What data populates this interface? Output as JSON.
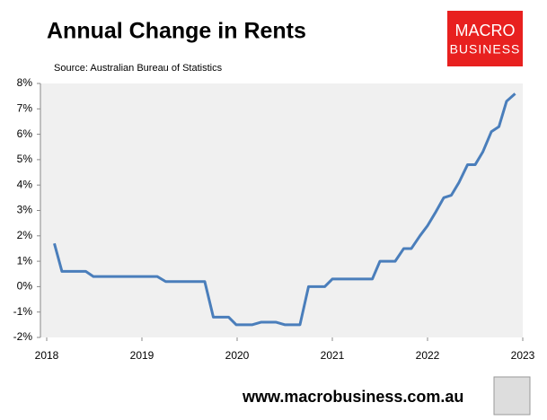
{
  "chart_data": {
    "type": "line",
    "title": "Annual Change in Rents",
    "subtitle": "Source: Australian Bureau of Statistics",
    "logo": {
      "line1": "MACRO",
      "line2": "BUSINESS"
    },
    "footer": "www.macrobusiness.com.au",
    "xlim": [
      2018,
      2023
    ],
    "xticks": [
      2018,
      2019,
      2020,
      2021,
      2022,
      2023
    ],
    "ylim": [
      -2,
      8
    ],
    "yticks": [
      {
        "value": -2,
        "label": "-2%"
      },
      {
        "value": -1,
        "label": "-1%"
      },
      {
        "value": 0,
        "label": "0%"
      },
      {
        "value": 1,
        "label": "1%"
      },
      {
        "value": 2,
        "label": "2%"
      },
      {
        "value": 3,
        "label": "3%"
      },
      {
        "value": 4,
        "label": "4%"
      },
      {
        "value": 5,
        "label": "5%"
      },
      {
        "value": 6,
        "label": "6%"
      },
      {
        "value": 7,
        "label": "7%"
      },
      {
        "value": 8,
        "label": "8%"
      }
    ],
    "grid": false,
    "series": [
      {
        "color": "#4a7ebb",
        "x": [
          2018.08,
          2018.16,
          2018.41,
          2018.49,
          2019.16,
          2019.25,
          2019.66,
          2019.75,
          2019.91,
          2019.99,
          2020.16,
          2020.25,
          2020.41,
          2020.5,
          2020.66,
          2020.75,
          2020.92,
          2021.0,
          2021.42,
          2021.5,
          2021.66,
          2021.75,
          2021.83,
          2021.92,
          2022.0,
          2022.08,
          2022.17,
          2022.25,
          2022.33,
          2022.42,
          2022.5,
          2022.58,
          2022.67,
          2022.75,
          2022.83,
          2022.92
        ],
        "values": [
          1.7,
          0.6,
          0.6,
          0.4,
          0.4,
          0.2,
          0.2,
          -1.2,
          -1.2,
          -1.5,
          -1.5,
          -1.4,
          -1.4,
          -1.5,
          -1.5,
          0.0,
          0.0,
          0.3,
          0.3,
          1.0,
          1.0,
          1.5,
          1.5,
          2.0,
          2.4,
          2.9,
          3.5,
          3.6,
          4.1,
          4.8,
          4.8,
          5.3,
          6.1,
          6.3,
          7.3,
          7.6
        ]
      }
    ]
  }
}
